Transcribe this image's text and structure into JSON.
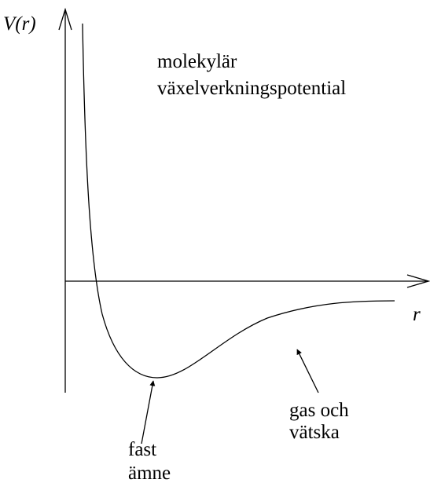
{
  "axes": {
    "y_label": "V(r)",
    "x_label": "r"
  },
  "title": [
    "molekylär",
    "växelverkningspotential"
  ],
  "annotations": [
    {
      "lines": [
        "fast",
        "ämne"
      ]
    },
    {
      "lines": [
        "gas och",
        "vätska"
      ]
    }
  ]
}
